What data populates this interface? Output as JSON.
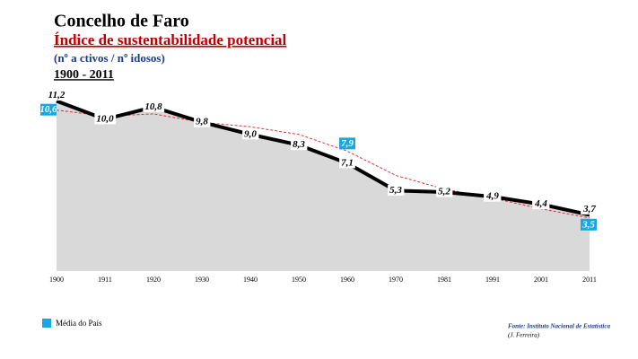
{
  "chart_data": {
    "type": "line",
    "title": "Concelho de Faro",
    "subtitle": "Índice de sustentabilidade potencial",
    "note": "(nº a ctivos / nº idosos)",
    "period": "1900 - 2011",
    "source": "Fonte: Instituto Nacional de Estatística",
    "author": "(J. Ferreira)",
    "categories": [
      "1900",
      "1911",
      "1920",
      "1930",
      "1940",
      "1950",
      "1960",
      "1970",
      "1981",
      "1991",
      "2001",
      "2011"
    ],
    "series": [
      {
        "color": "#000000",
        "area_color": "#d9d9d9",
        "values": [
          11.2,
          10.0,
          10.8,
          9.8,
          9.0,
          8.3,
          7.1,
          5.3,
          5.2,
          4.9,
          4.4,
          3.7
        ],
        "value_labels": [
          "11,2",
          "10,0",
          "10,8",
          "9,8",
          "9,0",
          "8,3",
          "7,1",
          "5,3",
          "5,2",
          "4,9",
          "4,4",
          "3,7"
        ]
      },
      {
        "name": "Média do País",
        "color": "#e03030",
        "label_color": "#1aa7e0",
        "values": [
          10.6,
          10.2,
          10.35,
          9.8,
          9.5,
          9.0,
          7.9,
          6.3,
          5.4,
          4.8,
          4.1,
          3.5
        ],
        "value_labels": [
          "10,6",
          null,
          null,
          null,
          null,
          null,
          "7,9",
          null,
          null,
          null,
          null,
          "3,5"
        ]
      }
    ],
    "ylim": [
      0,
      12
    ]
  }
}
